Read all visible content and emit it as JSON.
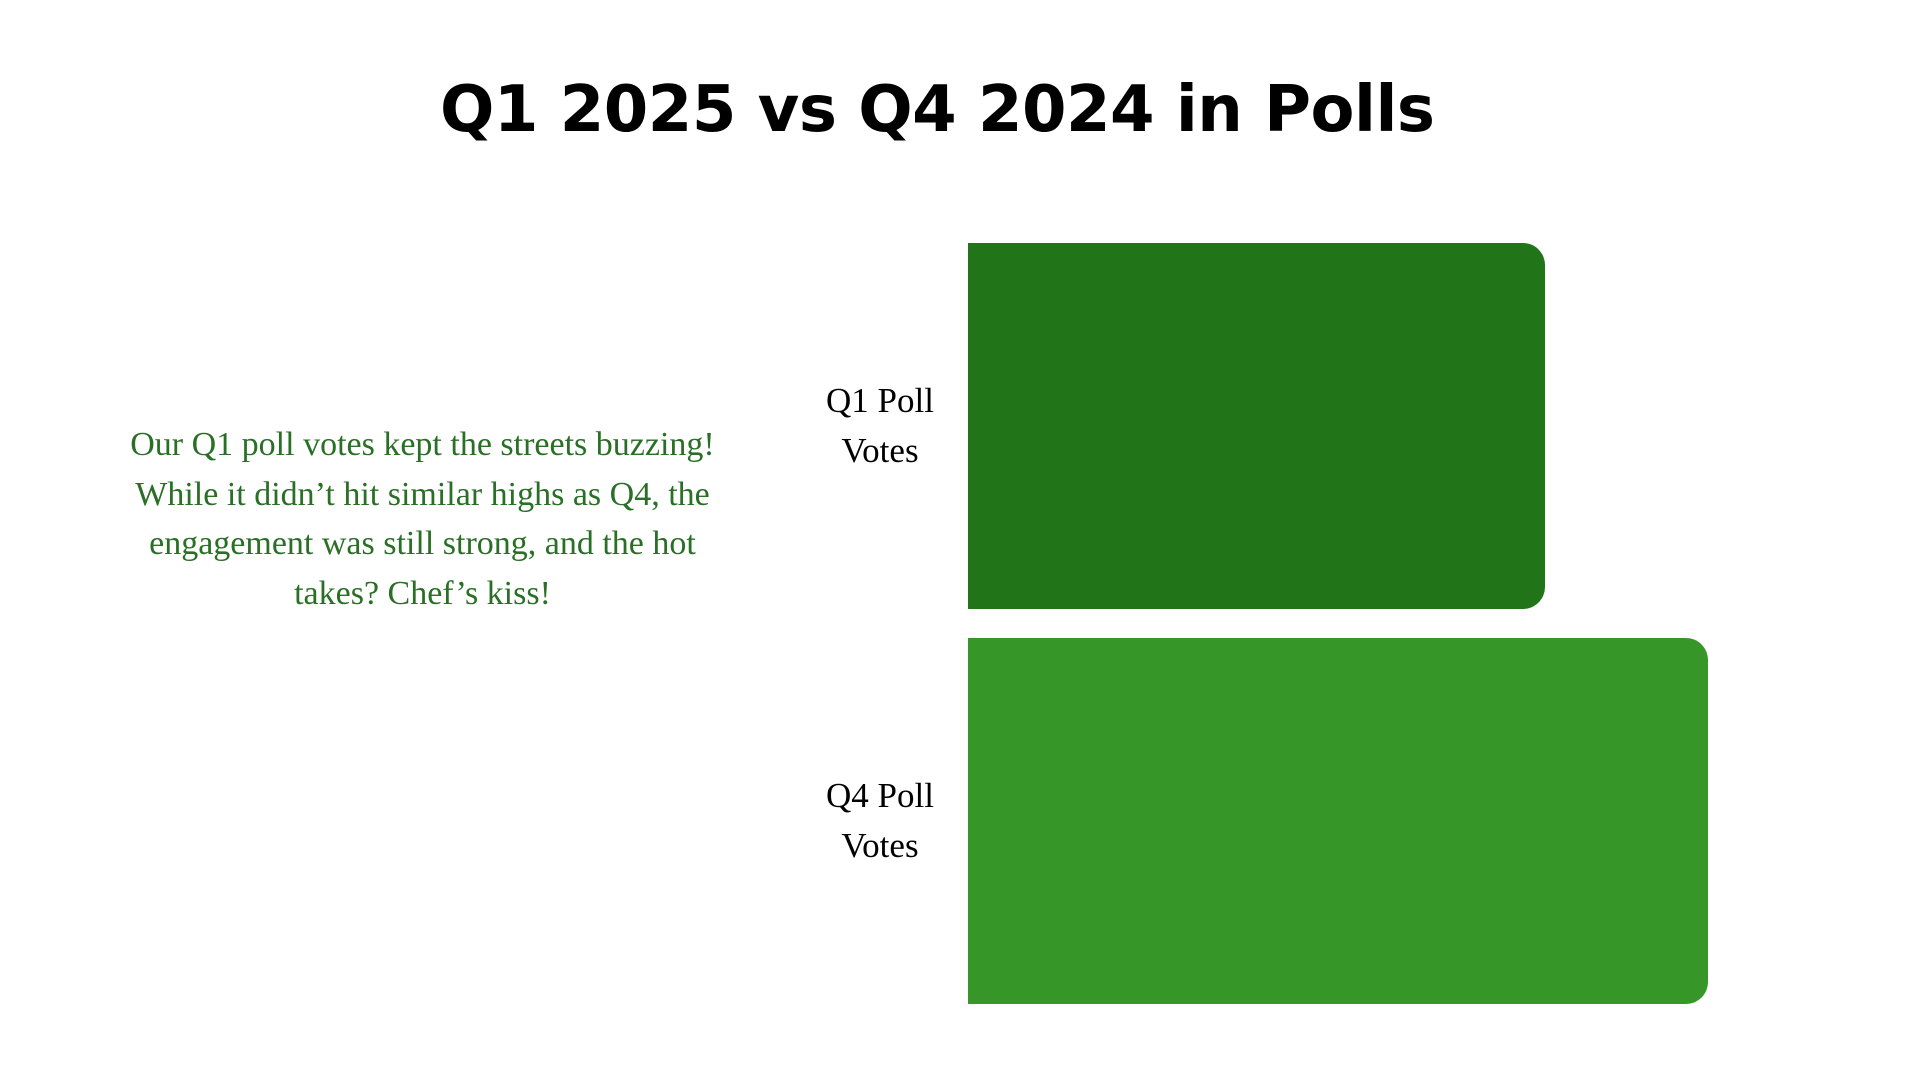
{
  "title": "Q1 2025 vs Q4 2024 in Polls",
  "description": "Our Q1 poll votes kept the streets buzzing! While it didn’t hit similar highs as Q4, the engagement was still strong, and the hot takes? Chef’s kiss!",
  "colors": {
    "title": "#000000",
    "description": "#2a6f26",
    "q1_bar": "#217418",
    "q4_bar": "#379628"
  },
  "chart_data": {
    "type": "bar",
    "orientation": "horizontal",
    "categories": [
      "Q1 Poll Votes",
      "Q4 Poll Votes"
    ],
    "values": [
      0.78,
      1.0
    ],
    "value_note": "relative bar lengths, Q4 = 1.0; no axis or values are printed",
    "colors": [
      "#217418",
      "#379628"
    ],
    "title": "",
    "xlabel": "",
    "ylabel": "",
    "grid": false,
    "legend": "none"
  }
}
